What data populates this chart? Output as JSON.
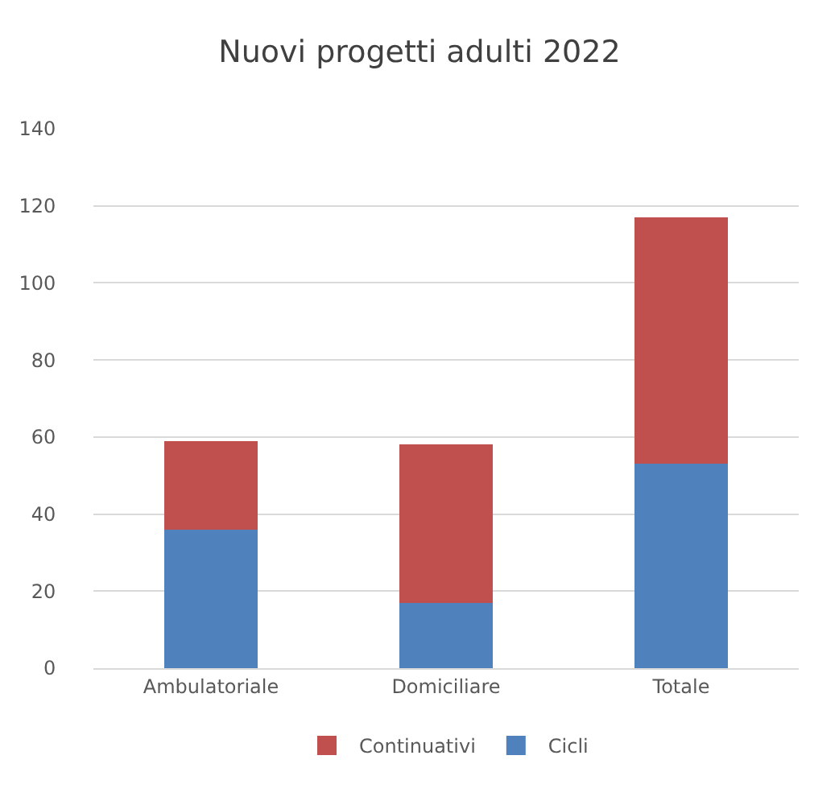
{
  "chart_data": {
    "type": "bar",
    "title": "Nuovi progetti adulti 2022",
    "stacked": true,
    "categories": [
      "Ambulatoriale",
      "Domiciliare",
      "Totale"
    ],
    "series": [
      {
        "name": "Cicli",
        "color": "#4f81bd",
        "values": [
          36,
          17,
          53
        ]
      },
      {
        "name": "Continuativi",
        "color": "#c0504d",
        "values": [
          23,
          41,
          64
        ]
      }
    ],
    "ylim": [
      0,
      140
    ],
    "yticks": [
      0,
      20,
      40,
      60,
      80,
      100,
      120,
      140
    ],
    "grid": "y",
    "legend": "bottom"
  }
}
